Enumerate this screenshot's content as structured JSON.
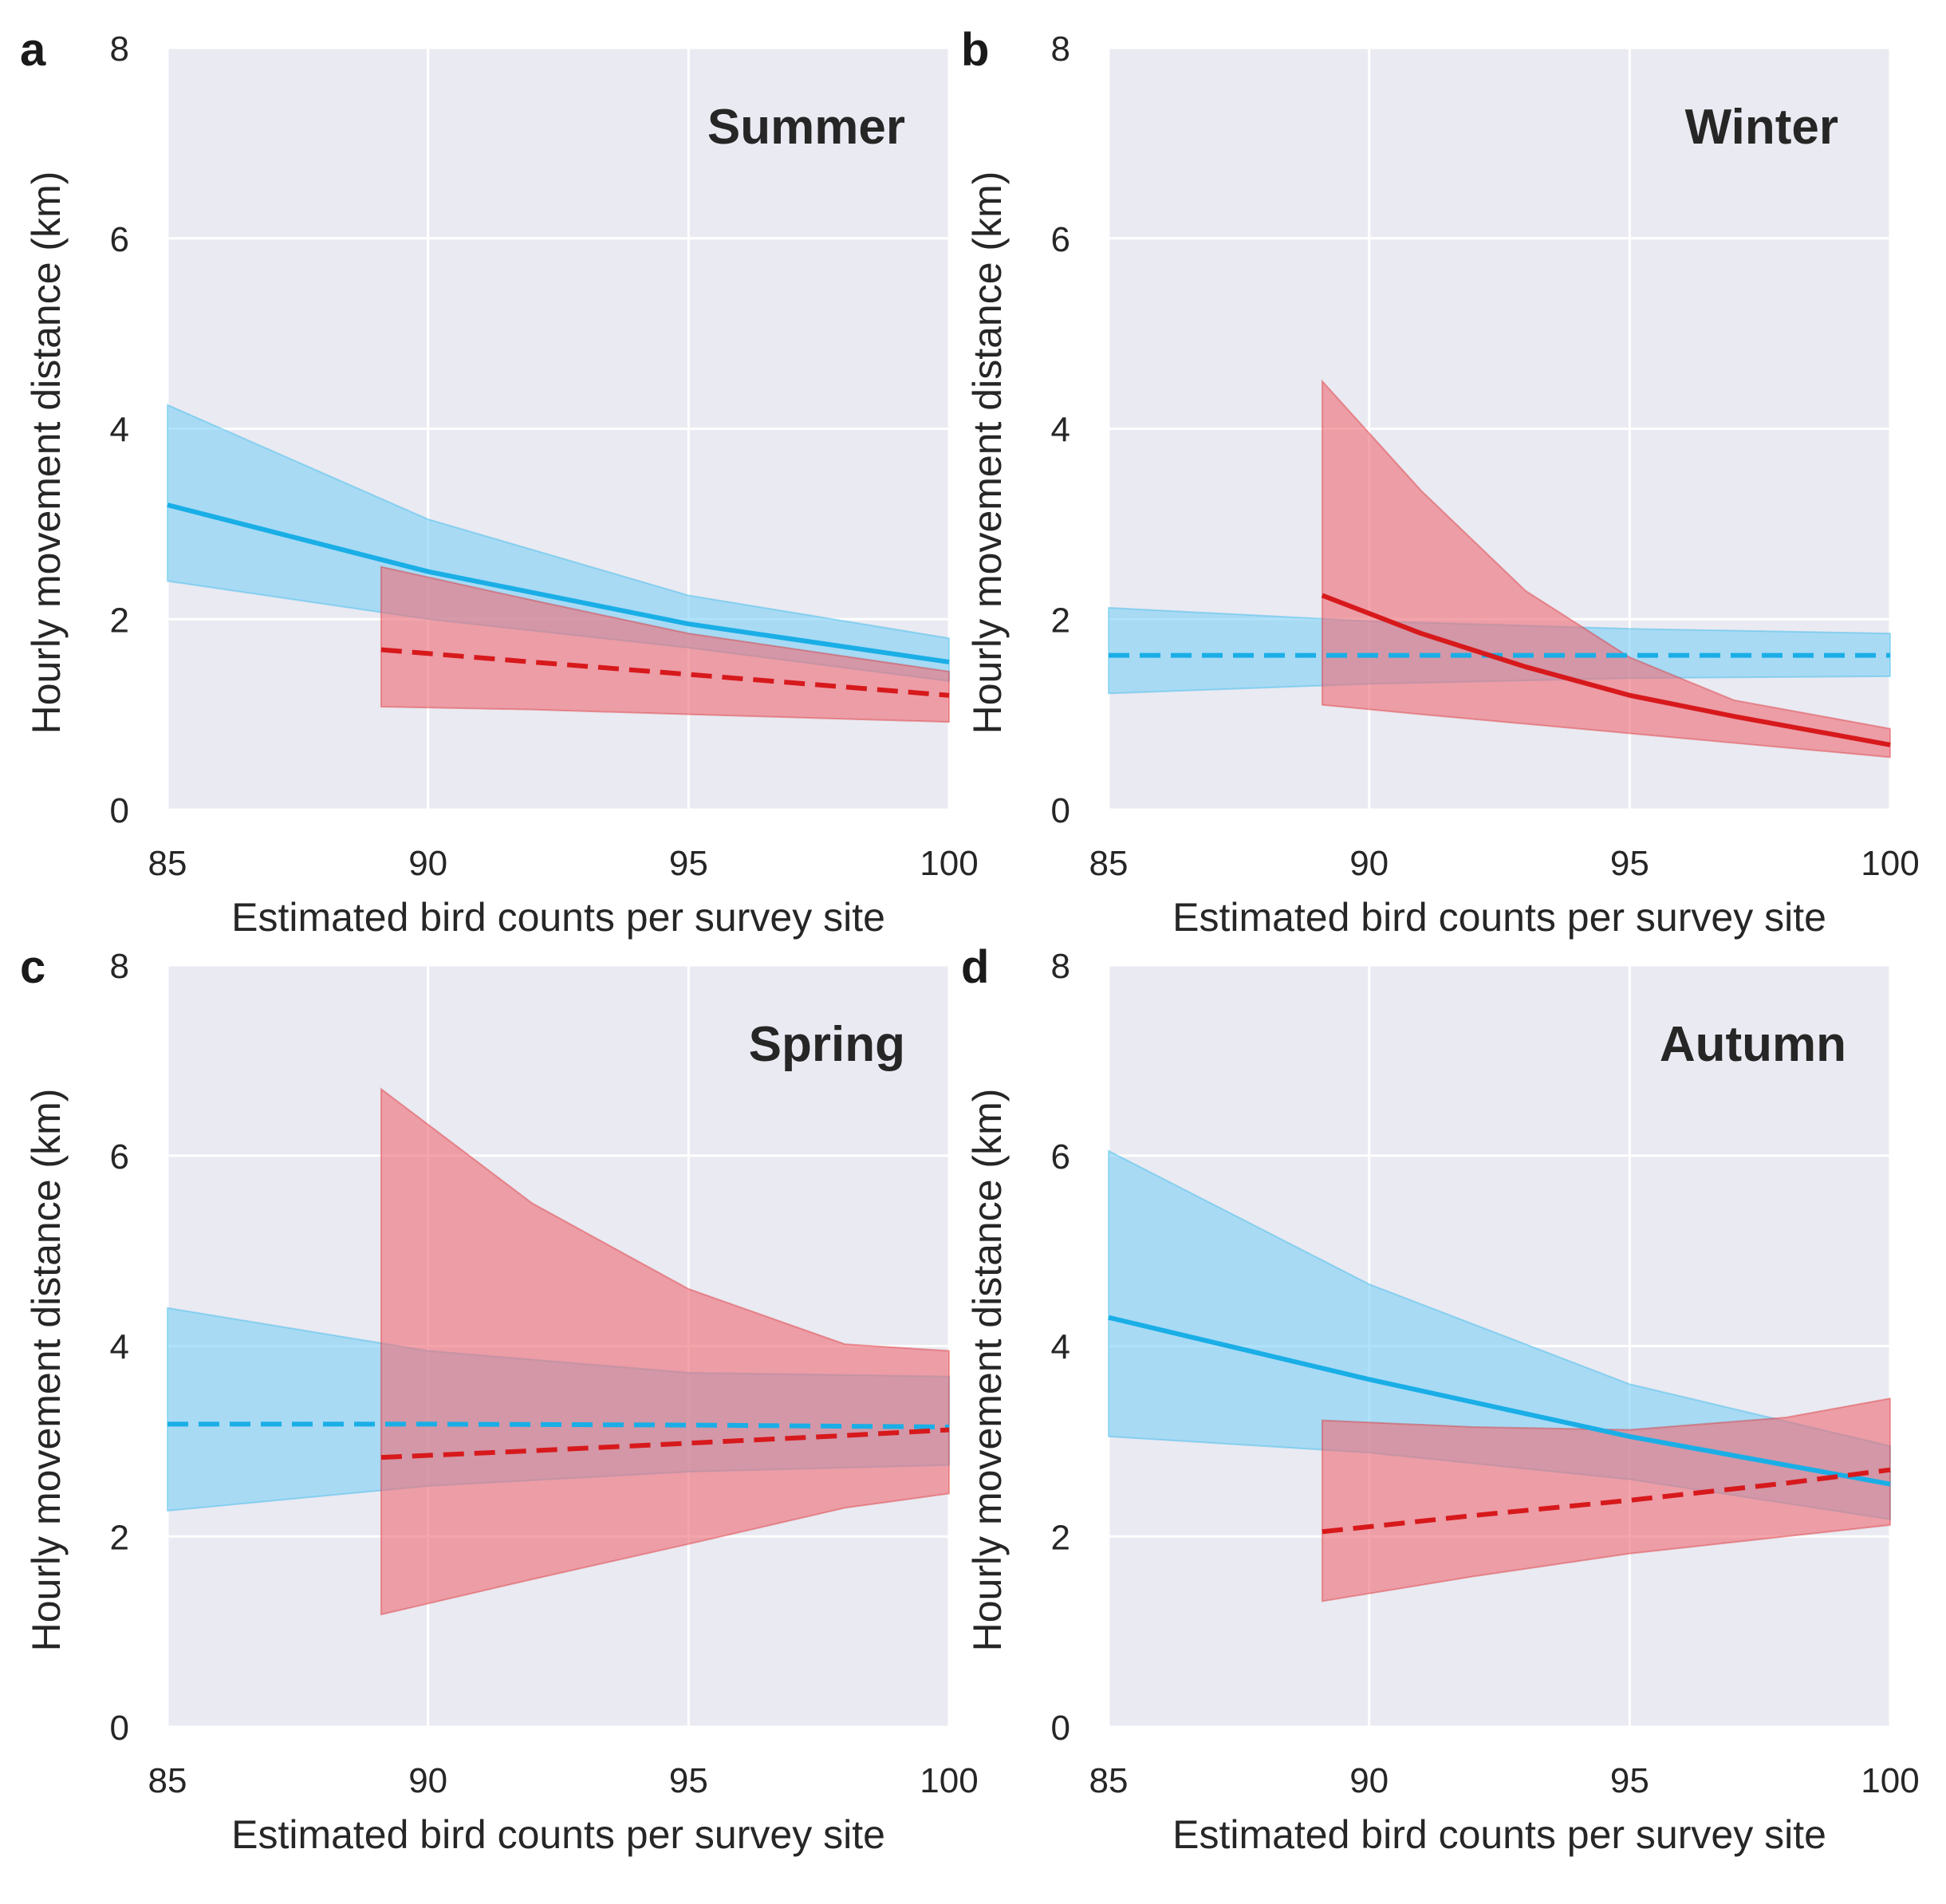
{
  "figure": {
    "colors": {
      "plot_background": "#eaeaf2",
      "grid": "#ffffff",
      "blue_line": "#1aaee6",
      "blue_band": "#7fd0f5",
      "red_line": "#d7191c",
      "red_band": "#ee6e78",
      "text": "#262626"
    }
  },
  "chart_data": [
    {
      "panel": "a",
      "type": "line",
      "title": "Summer",
      "xlabel": "Estimated bird counts per survey site",
      "ylabel": "Hourly movement distance (km)",
      "xlim": [
        85,
        100
      ],
      "ylim": [
        0,
        8
      ],
      "xticks": [
        "85",
        "90",
        "95",
        "100"
      ],
      "yticks": [
        "0",
        "2",
        "4",
        "6",
        "8"
      ],
      "grid": true,
      "series": [
        {
          "name": "blue",
          "color": "blue",
          "linestyle": "solid",
          "x": [
            85,
            90,
            95,
            100
          ],
          "y": [
            3.2,
            2.5,
            1.95,
            1.55
          ],
          "lower": [
            2.4,
            2.0,
            1.7,
            1.35
          ],
          "upper": [
            4.25,
            3.05,
            2.25,
            1.8
          ]
        },
        {
          "name": "red",
          "color": "red",
          "linestyle": "dashed",
          "x": [
            89.1,
            92,
            95,
            100
          ],
          "y": [
            1.68,
            1.55,
            1.42,
            1.2
          ],
          "lower": [
            1.08,
            1.05,
            1.0,
            0.92
          ],
          "upper": [
            2.55,
            2.2,
            1.85,
            1.45
          ]
        }
      ]
    },
    {
      "panel": "b",
      "type": "line",
      "title": "Winter",
      "xlabel": "Estimated bird counts per survey site",
      "ylabel": "Hourly movement distance (km)",
      "xlim": [
        85,
        100
      ],
      "ylim": [
        0,
        8
      ],
      "xticks": [
        "85",
        "90",
        "95",
        "100"
      ],
      "yticks": [
        "0",
        "2",
        "4",
        "6",
        "8"
      ],
      "grid": true,
      "series": [
        {
          "name": "blue",
          "color": "blue",
          "linestyle": "dashed",
          "x": [
            85,
            90,
            95,
            100
          ],
          "y": [
            1.62,
            1.62,
            1.62,
            1.62
          ],
          "lower": [
            1.22,
            1.32,
            1.38,
            1.4
          ],
          "upper": [
            2.12,
            1.98,
            1.9,
            1.85
          ]
        },
        {
          "name": "red",
          "color": "red",
          "linestyle": "solid",
          "x": [
            89.1,
            91,
            93,
            95,
            97,
            100
          ],
          "y": [
            2.25,
            1.85,
            1.5,
            1.2,
            0.98,
            0.68
          ],
          "lower": [
            1.1,
            1.0,
            0.9,
            0.8,
            0.7,
            0.55
          ],
          "upper": [
            4.5,
            3.35,
            2.3,
            1.6,
            1.15,
            0.85
          ]
        }
      ]
    },
    {
      "panel": "c",
      "type": "line",
      "title": "Spring",
      "xlabel": "Estimated bird counts per survey site",
      "ylabel": "Hourly movement distance (km)",
      "xlim": [
        85,
        100
      ],
      "ylim": [
        0,
        8
      ],
      "xticks": [
        "85",
        "90",
        "95",
        "100"
      ],
      "yticks": [
        "0",
        "2",
        "4",
        "6",
        "8"
      ],
      "grid": true,
      "series": [
        {
          "name": "blue",
          "color": "blue",
          "linestyle": "dashed",
          "x": [
            85,
            90,
            95,
            100
          ],
          "y": [
            3.18,
            3.18,
            3.17,
            3.15
          ],
          "lower": [
            2.27,
            2.53,
            2.68,
            2.75
          ],
          "upper": [
            4.4,
            3.95,
            3.72,
            3.68
          ]
        },
        {
          "name": "red",
          "color": "red",
          "linestyle": "dashed",
          "x": [
            89.1,
            92,
            95,
            98,
            100
          ],
          "y": [
            2.83,
            2.9,
            2.98,
            3.06,
            3.12
          ],
          "lower": [
            1.18,
            1.55,
            1.92,
            2.3,
            2.45
          ],
          "upper": [
            6.7,
            5.5,
            4.6,
            4.02,
            3.95
          ]
        }
      ]
    },
    {
      "panel": "d",
      "type": "line",
      "title": "Autumn",
      "xlabel": "Estimated bird counts per survey site",
      "ylabel": "Hourly movement distance (km)",
      "xlim": [
        85,
        100
      ],
      "ylim": [
        0,
        8
      ],
      "xticks": [
        "85",
        "90",
        "95",
        "100"
      ],
      "yticks": [
        "0",
        "2",
        "4",
        "6",
        "8"
      ],
      "grid": true,
      "series": [
        {
          "name": "blue",
          "color": "blue",
          "linestyle": "solid",
          "x": [
            85,
            90,
            95,
            100
          ],
          "y": [
            4.3,
            3.65,
            3.05,
            2.55
          ],
          "lower": [
            3.05,
            2.88,
            2.6,
            2.18
          ],
          "upper": [
            6.05,
            4.65,
            3.6,
            2.95
          ]
        },
        {
          "name": "red",
          "color": "red",
          "linestyle": "dashed",
          "x": [
            89.1,
            92,
            95,
            98,
            100
          ],
          "y": [
            2.05,
            2.22,
            2.38,
            2.56,
            2.7
          ],
          "lower": [
            1.32,
            1.58,
            1.82,
            2.0,
            2.12
          ],
          "upper": [
            3.22,
            3.15,
            3.12,
            3.25,
            3.45
          ]
        }
      ]
    }
  ]
}
